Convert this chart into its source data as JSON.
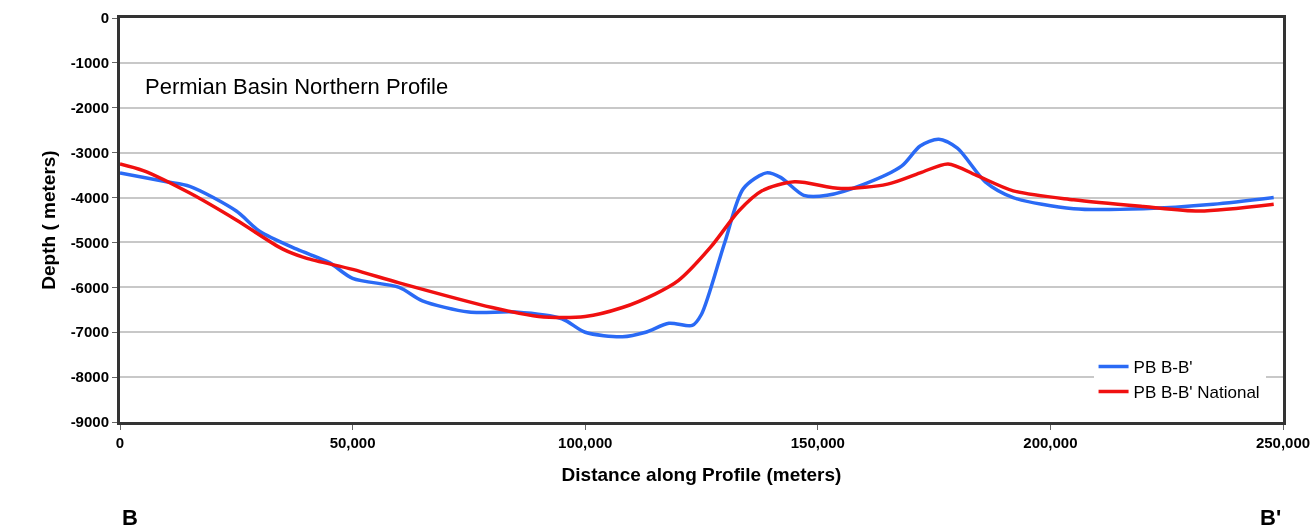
{
  "chart_data": {
    "type": "line",
    "title": "Permian Basin Northern Profile",
    "xlabel": "Distance along Profile (meters)",
    "ylabel": "Depth ( meters)",
    "annotations": [
      "B",
      "B'"
    ],
    "xlim": [
      0,
      250000
    ],
    "xticks": [
      0,
      {
        "value": 50000,
        "label": "50,000"
      },
      {
        "value": 100000,
        "label": "100,000"
      },
      {
        "value": 150000,
        "label": "150,000"
      },
      {
        "value": 200000,
        "label": "200,000"
      },
      {
        "value": 250000,
        "label": "250,000"
      }
    ],
    "ylim": [
      -9000,
      0
    ],
    "yticks": [
      -9000,
      -8000,
      -7000,
      -6000,
      -5000,
      -4000,
      -3000,
      -2000,
      -1000,
      0
    ],
    "grid": "y",
    "legend": "bottom right",
    "marker": "none",
    "line_style": "solid",
    "series": [
      {
        "name": "PB B-B'",
        "color": "#2a6af5",
        "x": [
          0,
          10000,
          15000,
          25000,
          30000,
          38000,
          45000,
          50000,
          60000,
          65000,
          75000,
          85000,
          95000,
          100000,
          108000,
          113000,
          118000,
          123000,
          125000,
          130000,
          134000,
          139000,
          142000,
          147000,
          152000,
          160000,
          168000,
          172000,
          176000,
          180000,
          186000,
          192000,
          205000,
          220000,
          235000,
          248000
        ],
        "values": [
          -3450,
          -3650,
          -3750,
          -4300,
          -4750,
          -5150,
          -5450,
          -5800,
          -6000,
          -6300,
          -6550,
          -6550,
          -6700,
          -7000,
          -7100,
          -7000,
          -6800,
          -6850,
          -6600,
          -5000,
          -3800,
          -3450,
          -3550,
          -3950,
          -3950,
          -3700,
          -3300,
          -2850,
          -2700,
          -2900,
          -3650,
          -4000,
          -4250,
          -4250,
          -4150,
          -4000
        ]
      },
      {
        "name": "PB B-B' National",
        "color": "#f01010",
        "x": [
          0,
          5000,
          15000,
          25000,
          35000,
          40000,
          50000,
          60000,
          80000,
          90000,
          100000,
          108000,
          115000,
          120000,
          127000,
          133000,
          138000,
          145000,
          155000,
          165000,
          172000,
          178000,
          184000,
          192000,
          205000,
          220000,
          232000,
          248000
        ],
        "values": [
          -3250,
          -3400,
          -3900,
          -4500,
          -5150,
          -5350,
          -5600,
          -5900,
          -6450,
          -6650,
          -6650,
          -6450,
          -6150,
          -5850,
          -5100,
          -4300,
          -3850,
          -3650,
          -3800,
          -3700,
          -3450,
          -3250,
          -3500,
          -3850,
          -4050,
          -4200,
          -4300,
          -4150
        ]
      }
    ]
  }
}
